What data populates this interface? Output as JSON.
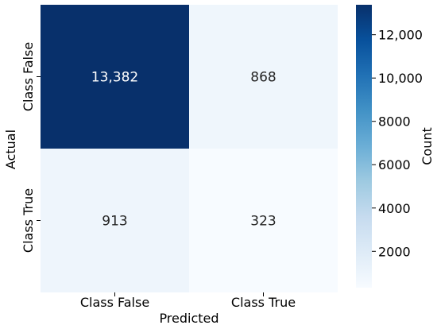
{
  "chart_data": {
    "type": "heatmap",
    "title": "",
    "xlabel": "Predicted",
    "ylabel": "Actual",
    "x_categories": [
      "Class False",
      "Class True"
    ],
    "y_categories": [
      "Class False",
      "Class True"
    ],
    "values": [
      [
        13382,
        868
      ],
      [
        913,
        323
      ]
    ],
    "value_labels": [
      [
        "13,382",
        "868"
      ],
      [
        "913",
        "323"
      ]
    ],
    "colorbar": {
      "label": "Count",
      "range": [
        323,
        13382
      ],
      "ticks": [
        2000,
        4000,
        6000,
        8000,
        10000,
        12000
      ],
      "tick_labels": [
        "2000",
        "4000",
        "6000",
        "8000",
        "10,000",
        "12,000"
      ],
      "colormap": "Blues"
    }
  }
}
